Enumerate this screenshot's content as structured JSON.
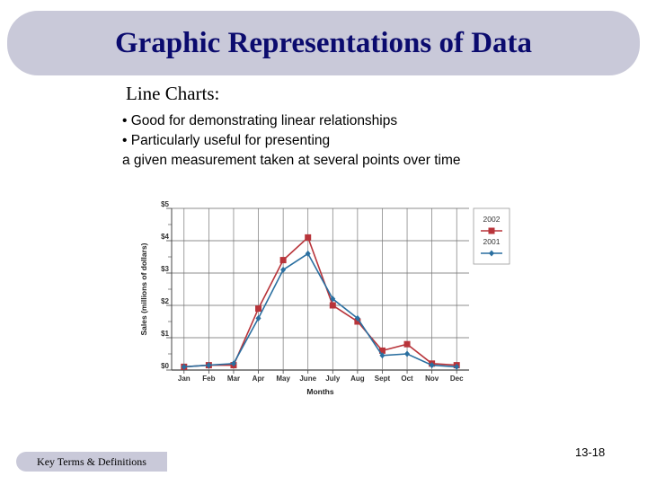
{
  "slide": {
    "title": "Graphic Representations of Data",
    "subtitle": "Line Charts:",
    "bullets": [
      "• Good for demonstrating linear relationships",
      "• Particularly useful for presenting",
      "a given measurement taken at several points over time"
    ],
    "footer_label": "Key Terms & Definitions",
    "page_number": "13-18"
  },
  "colors": {
    "banner": "#c9c9d9",
    "title": "#0b0b6e",
    "series_2002": "#b8343a",
    "series_2001": "#2a6fa0"
  },
  "chart_data": {
    "type": "line",
    "categories": [
      "Jan",
      "Feb",
      "Mar",
      "Apr",
      "May",
      "June",
      "July",
      "Aug",
      "Sept",
      "Oct",
      "Nov",
      "Dec"
    ],
    "series": [
      {
        "name": "2002",
        "marker": "square",
        "values": [
          0.1,
          0.15,
          0.15,
          1.9,
          3.4,
          4.1,
          2.0,
          1.5,
          0.6,
          0.8,
          0.2,
          0.15
        ]
      },
      {
        "name": "2001",
        "marker": "diamond",
        "values": [
          0.1,
          0.15,
          0.2,
          1.6,
          3.1,
          3.6,
          2.2,
          1.6,
          0.45,
          0.5,
          0.15,
          0.1
        ]
      }
    ],
    "xlabel": "Months",
    "ylabel": "Sales (millions of dollars)",
    "y_tick_labels": [
      "$0",
      "$1",
      "$2",
      "$3",
      "$4",
      "$5"
    ],
    "ylim": [
      0,
      5
    ],
    "grid": "horizontal",
    "legend_position": "right"
  }
}
